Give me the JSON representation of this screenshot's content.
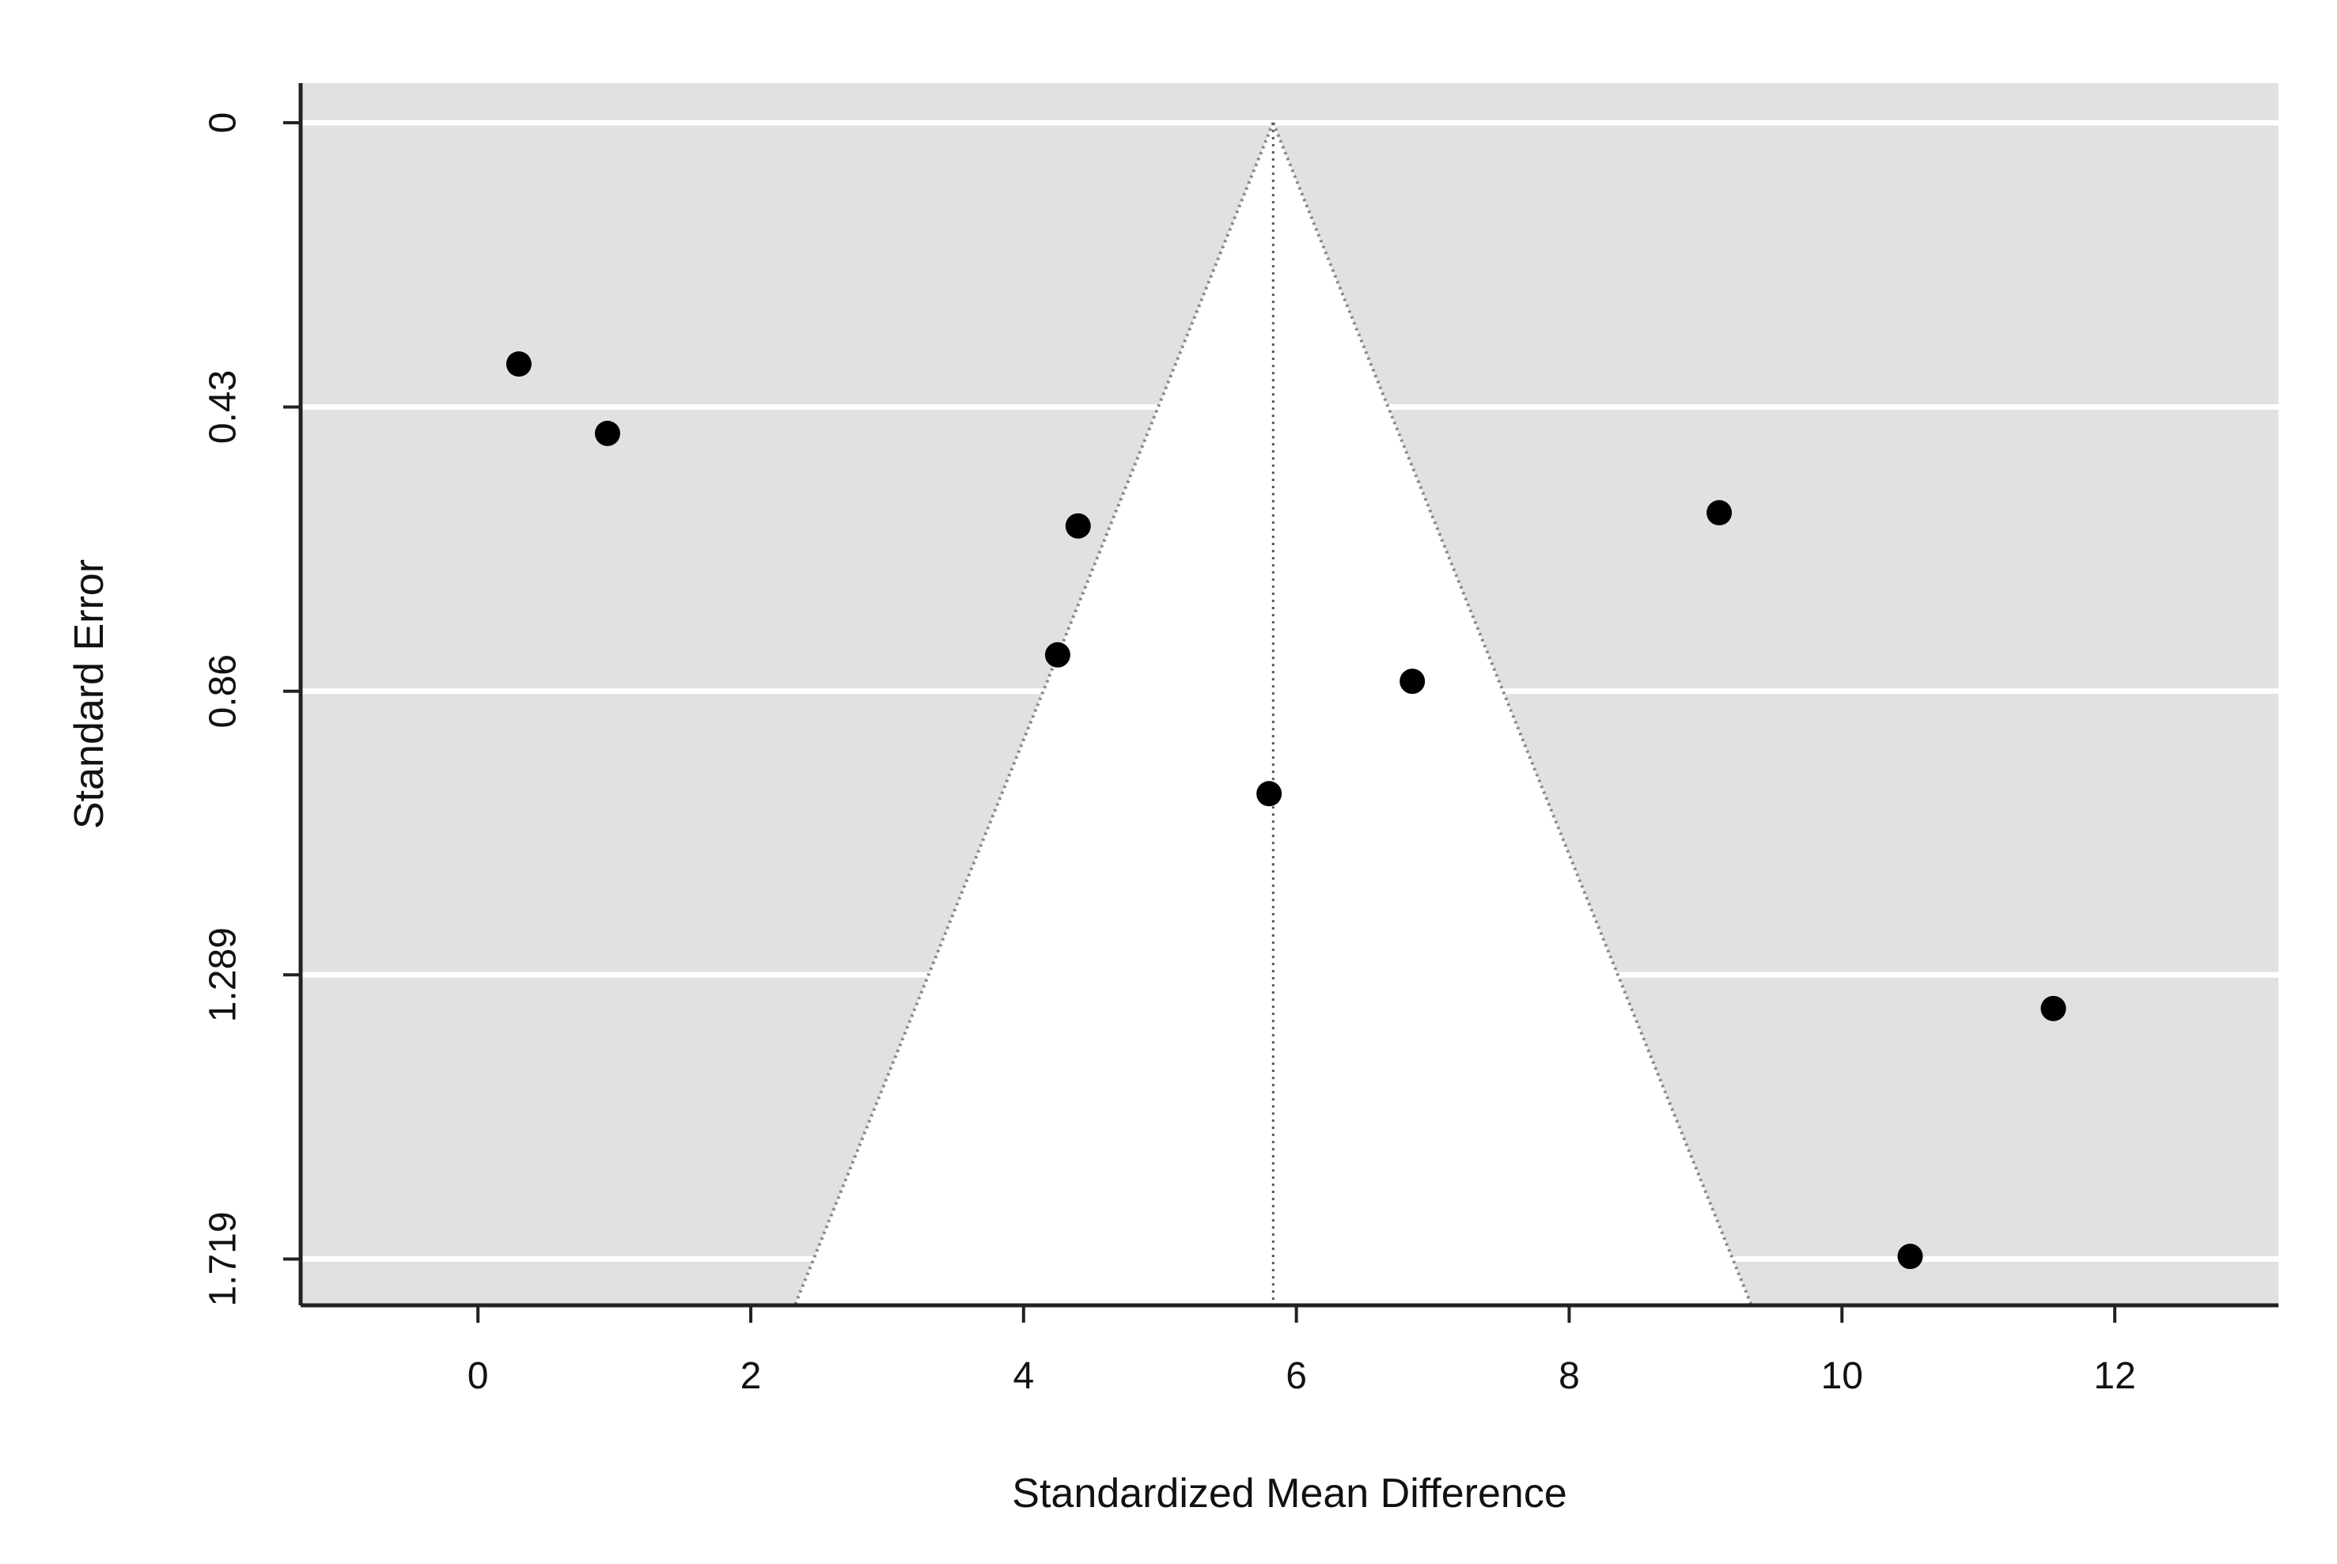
{
  "chart_data": {
    "type": "scatter",
    "subtype": "funnel",
    "title": "",
    "xlabel": "Standardized Mean Difference",
    "ylabel": "Standard Error",
    "xlim": [
      -1.3,
      13.2
    ],
    "ylim": [
      1.789,
      -0.06
    ],
    "y_axis_inverted": true,
    "x_ticks": [
      0,
      2,
      4,
      6,
      8,
      10,
      12
    ],
    "x_tick_labels": [
      "0",
      "2",
      "4",
      "6",
      "8",
      "10",
      "12"
    ],
    "y_ticks": [
      0,
      0.43,
      0.86,
      1.289,
      1.719
    ],
    "y_tick_labels": [
      "0",
      "0.43",
      "0.86",
      "1.289",
      "1.719"
    ],
    "grid": "horizontal",
    "background": "gray panel with white horizontal gridlines",
    "funnel": {
      "center_estimate": 5.83,
      "confidence_multiplier": 1.96,
      "region_color": "#ffffff",
      "outside_color": "#e1e1e1",
      "center_line_style": "dotted"
    },
    "points": [
      {
        "x": 0.3,
        "y": 0.365
      },
      {
        "x": 0.95,
        "y": 0.47
      },
      {
        "x": 4.4,
        "y": 0.61
      },
      {
        "x": 4.25,
        "y": 0.805
      },
      {
        "x": 9.1,
        "y": 0.59
      },
      {
        "x": 6.85,
        "y": 0.845
      },
      {
        "x": 5.8,
        "y": 1.015
      },
      {
        "x": 11.55,
        "y": 1.34
      },
      {
        "x": 10.5,
        "y": 1.715
      }
    ],
    "colors": {
      "panel": "#e1e1e1",
      "gridline": "#ffffff",
      "point": "#000000",
      "axis": "#222222",
      "funnel_edge": "#888888"
    }
  }
}
